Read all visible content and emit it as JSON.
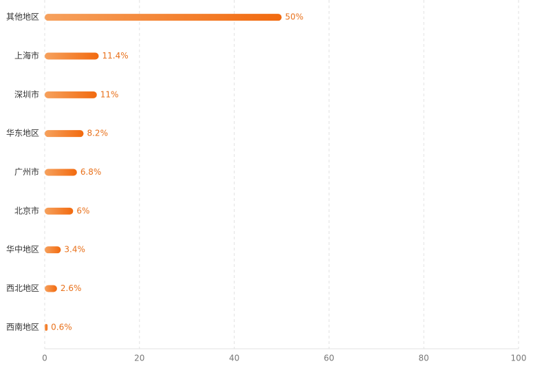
{
  "chart_data": {
    "type": "bar",
    "orientation": "horizontal",
    "categories": [
      "其他地区",
      "上海市",
      "深圳市",
      "华东地区",
      "广州市",
      "北京市",
      "华中地区",
      "西北地区",
      "西南地区"
    ],
    "values": [
      50,
      11.4,
      11,
      8.2,
      6.8,
      6,
      3.4,
      2.6,
      0.6
    ],
    "value_labels": [
      "50%",
      "11.4%",
      "11%",
      "8.2%",
      "6.8%",
      "6%",
      "3.4%",
      "2.6%",
      "0.6%"
    ],
    "color": "#f26a0f",
    "xlim": [
      0,
      100
    ],
    "xticks": [
      0,
      20,
      40,
      60,
      80,
      100
    ],
    "grid": true
  }
}
